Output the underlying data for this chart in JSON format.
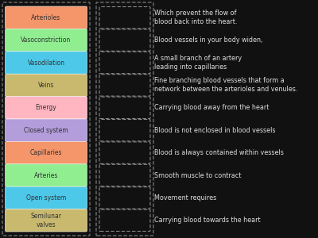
{
  "background_color": "#111111",
  "left_items": [
    {
      "label": "Arterioles",
      "color": "#f4956a"
    },
    {
      "label": "Vasoconstriction",
      "color": "#90ee90"
    },
    {
      "label": "Vasodilation",
      "color": "#4dc8e8"
    },
    {
      "label": "Veins",
      "color": "#c8b96e"
    },
    {
      "label": "Energy",
      "color": "#ffb6c1"
    },
    {
      "label": "Closed system",
      "color": "#b39ddb"
    },
    {
      "label": "Capillaries",
      "color": "#f4956a"
    },
    {
      "label": "Arteries",
      "color": "#90ee90"
    },
    {
      "label": "Open system",
      "color": "#4dc8e8"
    },
    {
      "label": "Semilunar\nvalves",
      "color": "#c8b96e"
    }
  ],
  "right_items": [
    "Which prevent the flow of\nblood back into the heart.",
    "Blood vessels in your body widen,",
    "A small branch of an artery\nleading into capillaries",
    "Fine branching blood vessels that form a\nnetwork between the arterioles and venules.",
    "Carrying blood away from the heart",
    "Blood is not enclosed in blood vessels",
    "Blood is always contained within vessels",
    "Smooth muscle to contract",
    "Movement requires",
    "Carrying blood towards the heart"
  ],
  "label_color": "#333333",
  "text_color": "#e0e0e0",
  "dashed_color": "#888888",
  "font_size_label": 5.5,
  "font_size_text": 5.8
}
